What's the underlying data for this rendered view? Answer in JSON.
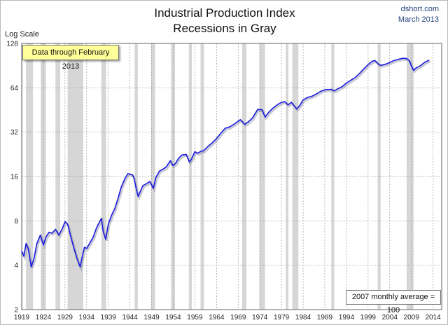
{
  "header": {
    "title_line1": "Industrial Production Index",
    "title_line2": "Recessions in Gray",
    "source": "dshort.com",
    "date": "March 2013"
  },
  "annotations": {
    "data_note": "Data through February 2013",
    "base_note": "2007 monthly average = 100"
  },
  "colors": {
    "series": "#1a1adf",
    "recession": "#d6d6d6",
    "grid": "#9a9a9a"
  },
  "chart_data": {
    "type": "line",
    "yscale": "log2",
    "ylabel": "Log Scale",
    "ylim": [
      2,
      128
    ],
    "yticks": [
      2,
      4,
      8,
      16,
      32,
      64,
      128
    ],
    "xlim": [
      1919,
      2016
    ],
    "xticks": [
      1919,
      1924,
      1929,
      1934,
      1939,
      1944,
      1949,
      1954,
      1959,
      1964,
      1969,
      1974,
      1979,
      1984,
      1989,
      1994,
      1999,
      2004,
      2009,
      2014
    ],
    "grid": true,
    "recessions": [
      [
        1918.7,
        1919.2
      ],
      [
        1920.0,
        1921.6
      ],
      [
        1923.4,
        1924.6
      ],
      [
        1926.8,
        1927.9
      ],
      [
        1929.6,
        1933.2
      ],
      [
        1937.4,
        1938.5
      ],
      [
        1945.1,
        1945.8
      ],
      [
        1948.9,
        1949.8
      ],
      [
        1953.5,
        1954.4
      ],
      [
        1957.6,
        1958.3
      ],
      [
        1960.3,
        1961.1
      ],
      [
        1969.9,
        1970.9
      ],
      [
        1973.9,
        1975.2
      ],
      [
        1980.0,
        1980.6
      ],
      [
        1981.5,
        1982.9
      ],
      [
        1990.5,
        1991.2
      ],
      [
        2001.2,
        2001.9
      ],
      [
        2007.9,
        2009.5
      ]
    ],
    "series": [
      {
        "x": [
          1919.0,
          1919.5,
          1920.0,
          1920.5,
          1921.2,
          1921.8,
          1922.5,
          1923.3,
          1924.0,
          1924.6,
          1925.3,
          1926.0,
          1926.8,
          1927.6,
          1928.3,
          1929.0,
          1929.6,
          1930.3,
          1931.0,
          1931.8,
          1932.5,
          1933.0,
          1933.5,
          1934.0,
          1934.8,
          1935.5,
          1936.3,
          1937.0,
          1937.4,
          1937.8,
          1938.4,
          1939.0,
          1939.8,
          1940.5,
          1941.3,
          1942.0,
          1942.8,
          1943.5,
          1944.0,
          1944.6,
          1945.0,
          1945.5,
          1945.9,
          1946.5,
          1947.0,
          1947.8,
          1948.6,
          1949.4,
          1950.0,
          1950.8,
          1951.6,
          1952.4,
          1953.3,
          1953.9,
          1954.5,
          1955.2,
          1956.0,
          1957.0,
          1957.7,
          1958.2,
          1959.0,
          1959.6,
          1960.5,
          1961.0,
          1962.0,
          1963.0,
          1964.0,
          1965.0,
          1966.0,
          1967.0,
          1968.0,
          1969.5,
          1970.5,
          1971.3,
          1972.3,
          1973.5,
          1974.5,
          1975.2,
          1976.0,
          1977.0,
          1978.0,
          1979.0,
          1979.8,
          1980.5,
          1981.3,
          1982.5,
          1983.2,
          1984.0,
          1985.0,
          1986.0,
          1987.0,
          1988.0,
          1989.0,
          1990.5,
          1991.2,
          1992.0,
          1993.0,
          1994.0,
          1995.0,
          1996.0,
          1997.0,
          1998.0,
          1999.0,
          2000.0,
          2000.6,
          2001.5,
          2002.0,
          2003.0,
          2004.0,
          2005.0,
          2006.0,
          2007.0,
          2007.9,
          2008.5,
          2009.0,
          2009.5,
          2010.0,
          2011.0,
          2012.0,
          2013.1
        ],
        "values": [
          5.0,
          4.6,
          5.6,
          5.2,
          3.9,
          4.4,
          5.6,
          6.4,
          5.5,
          6.2,
          6.7,
          6.6,
          7.0,
          6.4,
          7.0,
          7.9,
          7.6,
          6.3,
          5.3,
          4.4,
          3.9,
          4.6,
          5.3,
          5.2,
          5.7,
          6.2,
          7.2,
          7.9,
          8.3,
          6.8,
          6.0,
          7.6,
          8.8,
          9.7,
          11.5,
          13.6,
          15.4,
          16.7,
          16.6,
          16.4,
          15.3,
          13.0,
          11.7,
          12.9,
          13.9,
          14.3,
          14.8,
          13.3,
          15.8,
          17.4,
          17.9,
          18.6,
          20.5,
          19.0,
          19.6,
          21.2,
          22.4,
          22.6,
          20.1,
          21.0,
          23.6,
          23.0,
          23.8,
          23.9,
          25.6,
          27.1,
          29.0,
          31.5,
          34.0,
          34.7,
          36.2,
          38.9,
          36.2,
          37.5,
          40.0,
          45.6,
          45.5,
          40.5,
          43.5,
          46.5,
          49.0,
          51.0,
          51.5,
          49.0,
          51.0,
          46.0,
          48.5,
          53.0,
          55.0,
          56.0,
          58.0,
          60.5,
          62.0,
          62.5,
          61.0,
          63.0,
          65.0,
          69.0,
          72.0,
          75.0,
          80.0,
          86.0,
          92.0,
          97.0,
          98.0,
          92.0,
          91.0,
          92.5,
          95.0,
          98.0,
          100.0,
          101.5,
          101.0,
          98.0,
          90.0,
          84.0,
          87.0,
          90.0,
          95.0,
          98.5
        ]
      }
    ]
  }
}
